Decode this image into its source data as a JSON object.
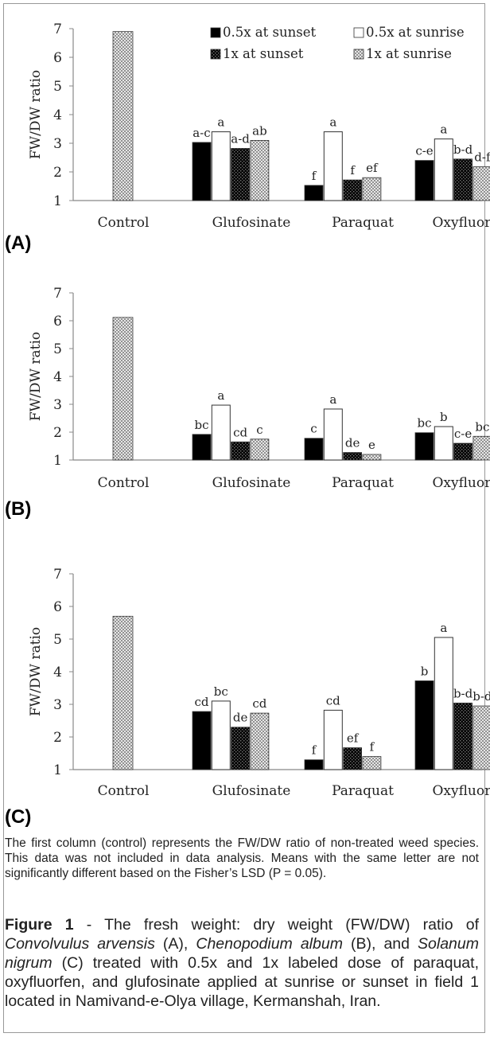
{
  "legend": [
    "0.5x at sunset",
    "0.5x at sunrise",
    "1x at sunset",
    "1x at sunrise"
  ],
  "chart_data": [
    {
      "type": "bar",
      "panel_label": "(A)",
      "ylabel": "FW/DW ratio",
      "ylim": [
        1,
        7
      ],
      "yticks": [
        "1",
        "2",
        "3",
        "4",
        "5",
        "6",
        "7"
      ],
      "categories": [
        "Control",
        "Glufosinate",
        "Paraquat",
        "Oxyfluorfen"
      ],
      "control_value": 6.9,
      "legend_shown": true,
      "series": [
        {
          "name": "0.5x at sunset",
          "values": [
            null,
            3.03,
            1.53,
            2.4
          ],
          "letters": [
            "",
            "a-c",
            "f",
            "c-e"
          ]
        },
        {
          "name": "0.5x at sunrise",
          "values": [
            null,
            3.4,
            3.4,
            3.15
          ],
          "letters": [
            "",
            "a",
            "a",
            "a"
          ]
        },
        {
          "name": "1x at sunset",
          "values": [
            null,
            2.82,
            1.72,
            2.45
          ],
          "letters": [
            "",
            "a-d",
            "f",
            "b-d"
          ]
        },
        {
          "name": "1x at sunrise",
          "values": [
            null,
            3.1,
            1.8,
            2.18
          ],
          "letters": [
            "",
            "ab",
            "ef",
            "d-f"
          ]
        }
      ]
    },
    {
      "type": "bar",
      "panel_label": "(B)",
      "ylabel": "FW/DW ratio",
      "ylim": [
        1,
        7
      ],
      "yticks": [
        "1",
        "2",
        "3",
        "4",
        "5",
        "6",
        "7"
      ],
      "categories": [
        "Control",
        "Glufosinate",
        "Paraquat",
        "Oxyfluorfen"
      ],
      "control_value": 6.12,
      "legend_shown": false,
      "series": [
        {
          "name": "0.5x at sunset",
          "values": [
            null,
            1.92,
            1.78,
            1.98
          ],
          "letters": [
            "",
            "bc",
            "c",
            "bc"
          ]
        },
        {
          "name": "0.5x at sunrise",
          "values": [
            null,
            2.97,
            2.83,
            2.2
          ],
          "letters": [
            "",
            "a",
            "a",
            "b"
          ]
        },
        {
          "name": "1x at sunset",
          "values": [
            null,
            1.65,
            1.27,
            1.6
          ],
          "letters": [
            "",
            "cd",
            "de",
            "c-e"
          ]
        },
        {
          "name": "1x at sunrise",
          "values": [
            null,
            1.75,
            1.2,
            1.85
          ],
          "letters": [
            "",
            "c",
            "e",
            "bc"
          ]
        }
      ]
    },
    {
      "type": "bar",
      "panel_label": "(C)",
      "ylabel": "FW/DW ratio",
      "ylim": [
        1,
        7
      ],
      "yticks": [
        "1",
        "2",
        "3",
        "4",
        "5",
        "6",
        "7"
      ],
      "categories": [
        "Control",
        "Glufosinate",
        "Paraquat",
        "Oxyfluorfen"
      ],
      "control_value": 5.7,
      "legend_shown": false,
      "series": [
        {
          "name": "0.5x at sunset",
          "values": [
            null,
            2.78,
            1.3,
            3.72
          ],
          "letters": [
            "",
            "cd",
            "f",
            "b"
          ]
        },
        {
          "name": "0.5x at sunrise",
          "values": [
            null,
            3.1,
            2.82,
            5.05
          ],
          "letters": [
            "",
            "bc",
            "cd",
            "a"
          ]
        },
        {
          "name": "1x at sunset",
          "values": [
            null,
            2.3,
            1.67,
            3.04
          ],
          "letters": [
            "",
            "de",
            "ef",
            "b-d"
          ]
        },
        {
          "name": "1x at sunrise",
          "values": [
            null,
            2.73,
            1.4,
            2.95
          ],
          "letters": [
            "",
            "cd",
            "f",
            "b-d"
          ]
        }
      ]
    }
  ],
  "note": "The first column (control) represents the FW/DW ratio of non-treated weed species. This data was not included in data analysis. Means with the same letter are not significantly different based on the Fisher’s LSD (P = 0.05).",
  "caption": {
    "figure_label": "Figure 1",
    "p1": " - The fresh weight: dry weight (FW/DW) ratio of ",
    "species1": "Convolvulus arvensis",
    "p2": " (A), ",
    "species2": "Chenopodium album",
    "p3": " (B), and ",
    "species3": "Solanum nigrum",
    "p4": " (C) treated with 0.5x and 1x labeled dose of paraquat, oxyfluorfen, and glufosinate applied at sunrise or sunset in field 1 located in Namivand-e-Olya village, Kermanshah, Iran."
  },
  "colors": {
    "sunset_half": "#000000",
    "sunrise_half": "#ffffff",
    "sunset_full": "#1a1a1a",
    "sunrise_full": "#e4e4e4",
    "axis": "#888888",
    "text": "#222222"
  }
}
